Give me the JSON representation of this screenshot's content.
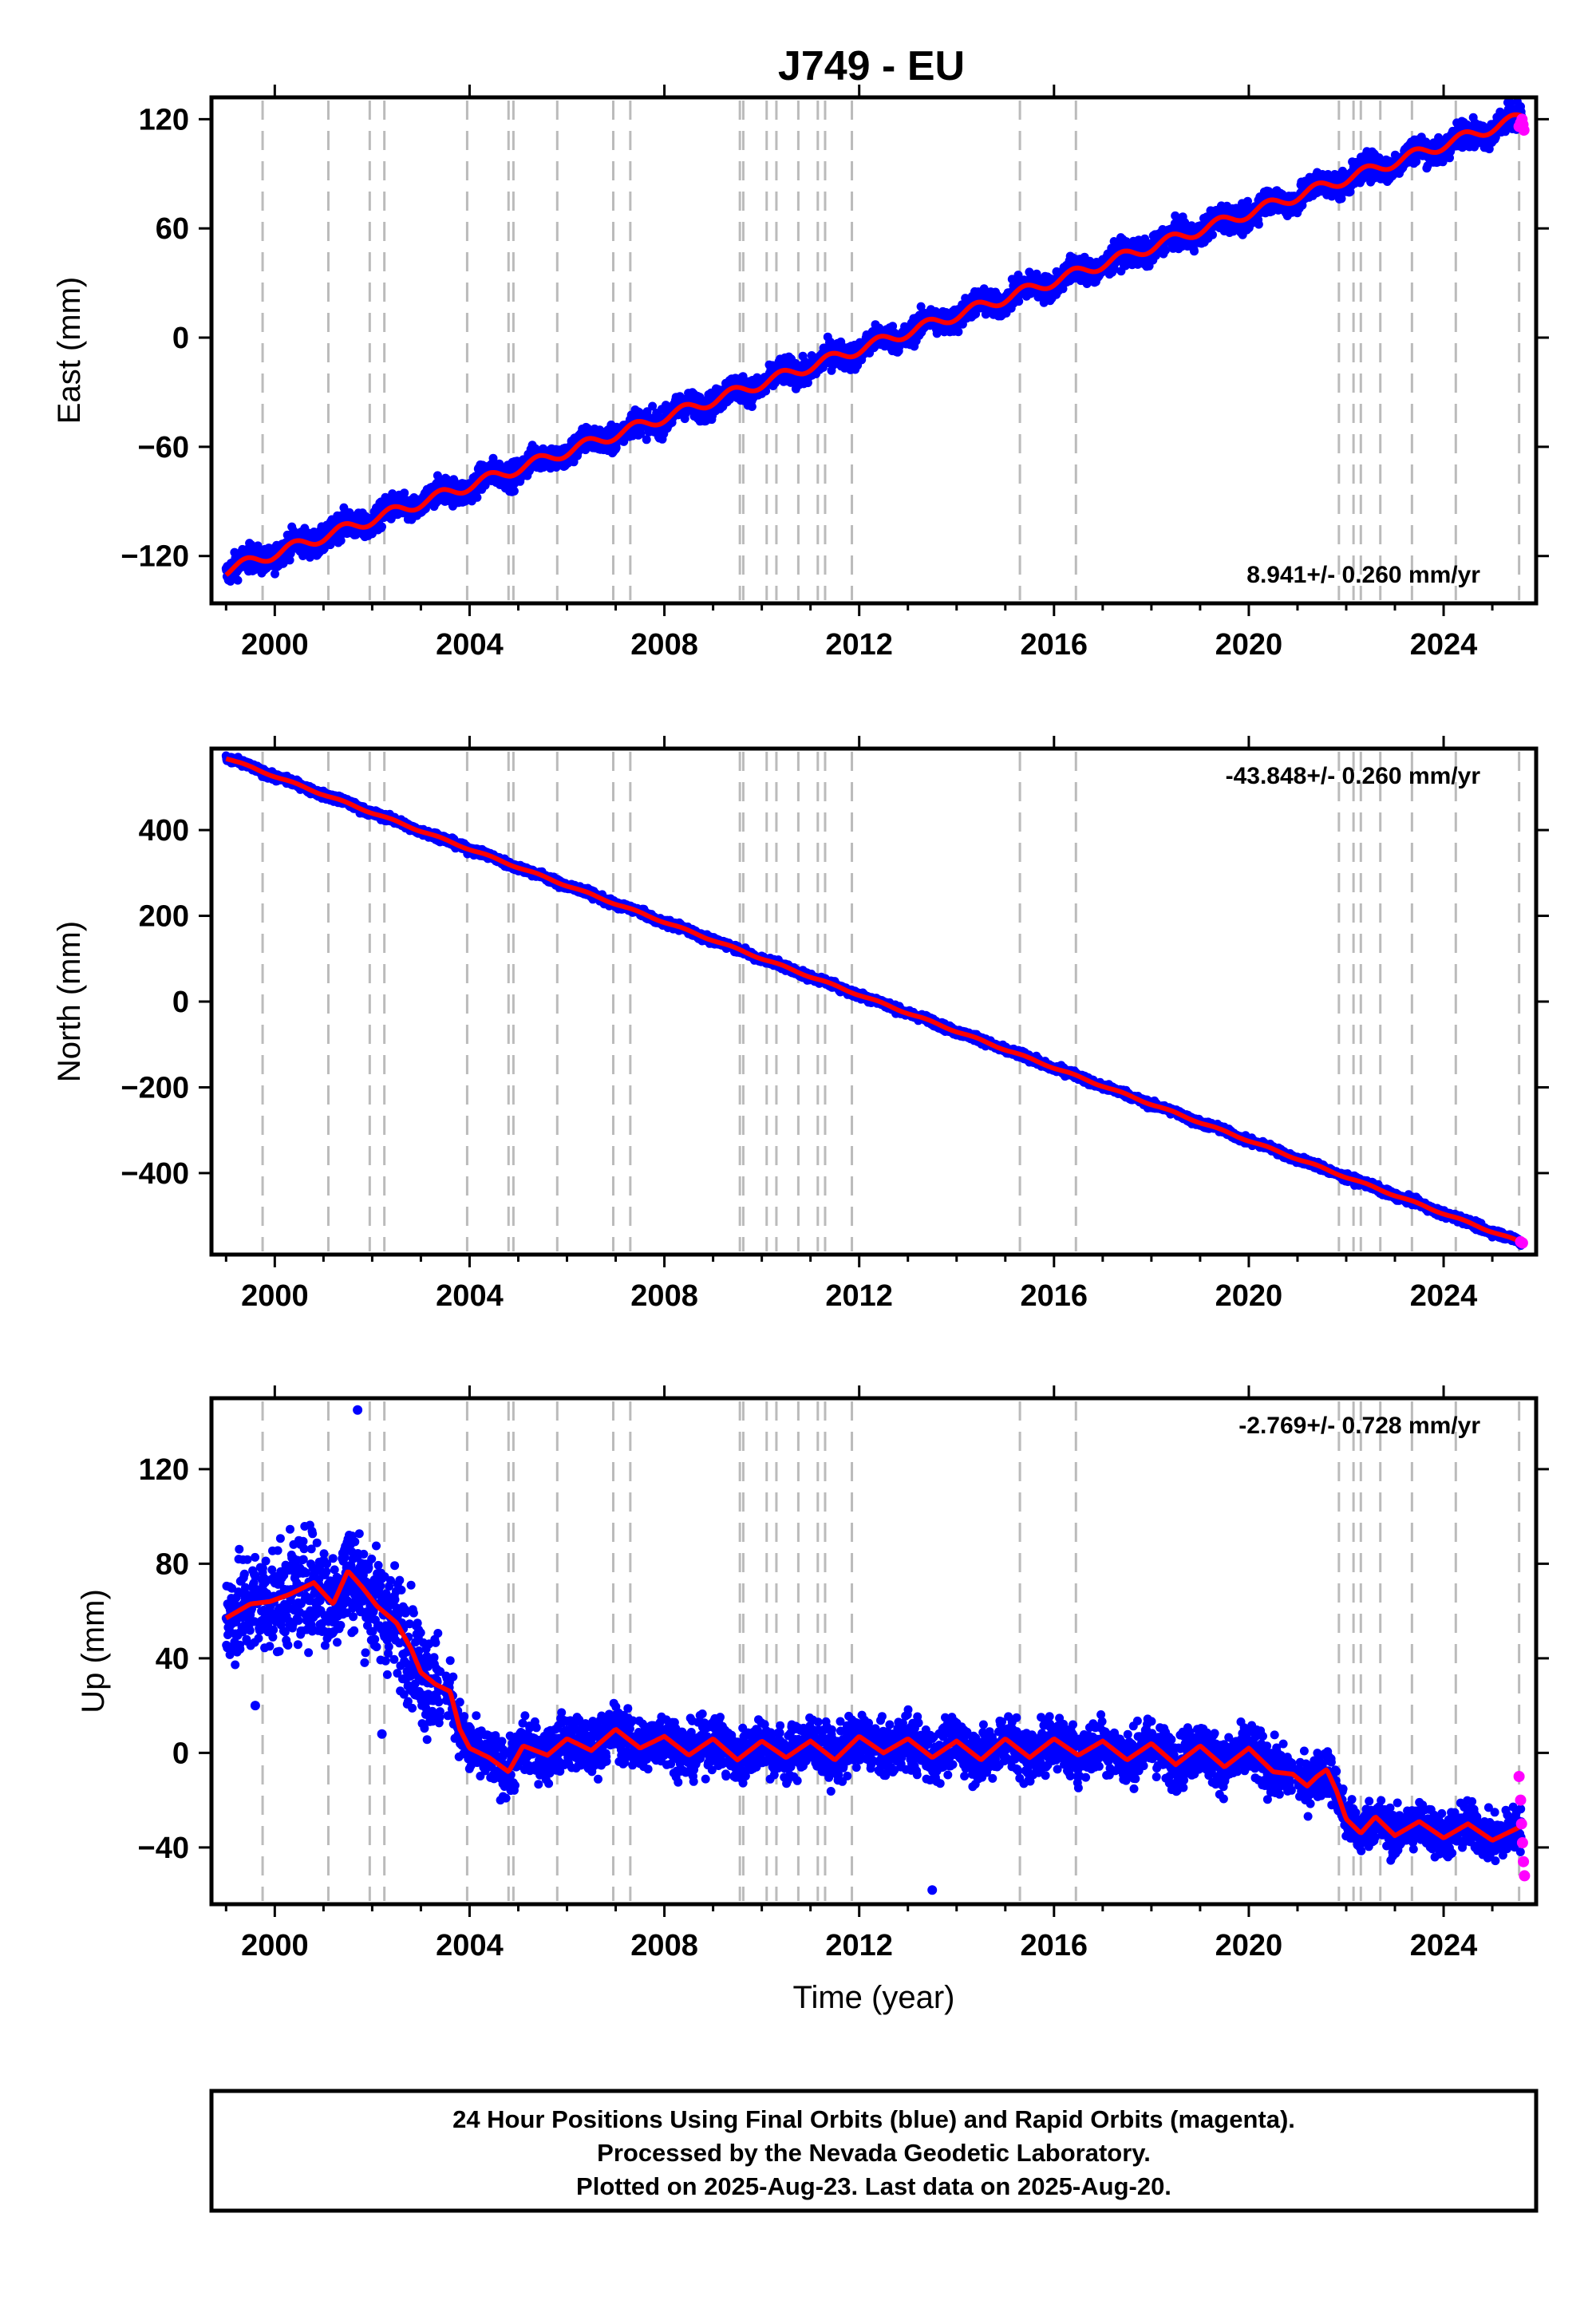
{
  "page": {
    "title": "J749 - EU",
    "footer": {
      "lines": [
        "24 Hour Positions Using Final Orbits (blue) and Rapid Orbits (magenta).",
        "Processed by the Nevada Geodetic Laboratory.",
        "Plotted on 2025-Aug-23. Last data on 2025-Aug-20."
      ]
    }
  },
  "colors": {
    "final_orbits": "#0000ff",
    "rapid_orbits": "#ff00ff",
    "model_fit": "#ff0000",
    "event_lines": "#bbbbbb"
  },
  "chart_data": [
    {
      "type": "scatter",
      "component": "East",
      "ylabel": "East (mm)",
      "xlabel": "",
      "xlim": [
        1998.7,
        2025.9
      ],
      "ylim": [
        -146,
        132
      ],
      "yticks": [
        -120,
        -60,
        0,
        60,
        120
      ],
      "xticks": [
        2000,
        2004,
        2008,
        2012,
        2016,
        2020,
        2024
      ],
      "grid": false,
      "rate_label": "8.941+/- 0.260 mm/yr",
      "rate_position": "bottom-right",
      "trend": {
        "start": [
          1999.0,
          -128
        ],
        "end": [
          2025.6,
          121
        ]
      },
      "seasonal_amplitude": 3,
      "scatter_spread": 5,
      "fit_steps": [
        [
          2001.5,
          4
        ],
        [
          2002.4,
          4
        ]
      ],
      "rapid_orbit_points": [
        [
          2025.55,
          116
        ],
        [
          2025.58,
          118
        ],
        [
          2025.61,
          120
        ],
        [
          2025.63,
          117
        ],
        [
          2025.65,
          114
        ]
      ]
    },
    {
      "type": "scatter",
      "component": "North",
      "ylabel": "North (mm)",
      "xlabel": "",
      "xlim": [
        1998.7,
        2025.9
      ],
      "ylim": [
        -590,
        590
      ],
      "yticks": [
        -400,
        -200,
        0,
        200,
        400
      ],
      "xticks": [
        2000,
        2004,
        2008,
        2012,
        2016,
        2020,
        2024
      ],
      "grid": false,
      "rate_label": "-43.848+/- 0.260 mm/yr",
      "rate_position": "top-right",
      "trend": {
        "start": [
          1999.0,
          568
        ],
        "end": [
          2025.6,
          -562
        ]
      },
      "seasonal_amplitude": 2,
      "scatter_spread": 6,
      "fit_steps": [],
      "rapid_orbit_points": [
        [
          2025.58,
          -560
        ],
        [
          2025.62,
          -563
        ]
      ]
    },
    {
      "type": "scatter",
      "component": "Up",
      "ylabel": "Up (mm)",
      "xlabel": "Time (year)",
      "xlim": [
        1998.7,
        2025.9
      ],
      "ylim": [
        -64,
        150
      ],
      "yticks": [
        -40,
        0,
        40,
        80,
        120
      ],
      "xticks": [
        2000,
        2004,
        2008,
        2012,
        2016,
        2020,
        2024
      ],
      "grid": false,
      "rate_label": "-2.769+/- 0.728 mm/yr",
      "rate_position": "top-right",
      "fit_curve": [
        [
          1999.0,
          57
        ],
        [
          1999.5,
          63
        ],
        [
          1999.9,
          64
        ],
        [
          2000.3,
          67
        ],
        [
          2000.8,
          72
        ],
        [
          2001.2,
          63
        ],
        [
          2001.5,
          77
        ],
        [
          2001.8,
          70
        ],
        [
          2002.1,
          62
        ],
        [
          2002.5,
          55
        ],
        [
          2002.8,
          44
        ],
        [
          2003.0,
          34
        ],
        [
          2003.3,
          29
        ],
        [
          2003.6,
          26
        ],
        [
          2003.8,
          10
        ],
        [
          2004.0,
          2
        ],
        [
          2004.4,
          -2
        ],
        [
          2004.8,
          -8
        ],
        [
          2005.1,
          3
        ],
        [
          2005.6,
          -1
        ],
        [
          2006.0,
          6
        ],
        [
          2006.5,
          1
        ],
        [
          2007.0,
          10
        ],
        [
          2007.5,
          2
        ],
        [
          2008.0,
          7
        ],
        [
          2008.5,
          -1
        ],
        [
          2009.0,
          6
        ],
        [
          2009.5,
          -3
        ],
        [
          2010.0,
          5
        ],
        [
          2010.5,
          -2
        ],
        [
          2011.0,
          5
        ],
        [
          2011.5,
          -3
        ],
        [
          2012.0,
          7
        ],
        [
          2012.5,
          0
        ],
        [
          2013.0,
          6
        ],
        [
          2013.5,
          -2
        ],
        [
          2014.0,
          5
        ],
        [
          2014.5,
          -3
        ],
        [
          2015.0,
          6
        ],
        [
          2015.5,
          -2
        ],
        [
          2016.0,
          6
        ],
        [
          2016.5,
          -1
        ],
        [
          2017.0,
          5
        ],
        [
          2017.5,
          -3
        ],
        [
          2018.0,
          4
        ],
        [
          2018.5,
          -5
        ],
        [
          2019.0,
          3
        ],
        [
          2019.5,
          -6
        ],
        [
          2020.0,
          2
        ],
        [
          2020.5,
          -8
        ],
        [
          2020.9,
          -9
        ],
        [
          2021.2,
          -14
        ],
        [
          2021.4,
          -10
        ],
        [
          2021.6,
          -7
        ],
        [
          2021.8,
          -16
        ],
        [
          2022.0,
          -28
        ],
        [
          2022.3,
          -34
        ],
        [
          2022.6,
          -27
        ],
        [
          2023.0,
          -35
        ],
        [
          2023.5,
          -29
        ],
        [
          2024.0,
          -36
        ],
        [
          2024.5,
          -30
        ],
        [
          2025.0,
          -37
        ],
        [
          2025.6,
          -31
        ]
      ],
      "scatter_segments": [
        {
          "x": [
            1999.0,
            2003.4
          ],
          "spread": 16
        },
        {
          "x": [
            2003.5,
            2020.9
          ],
          "spread": 8
        },
        {
          "x": [
            2021.0,
            2025.6
          ],
          "spread": 7
        }
      ],
      "outlier_points": [
        [
          2001.7,
          145
        ],
        [
          2013.5,
          -58
        ],
        [
          2002.2,
          8
        ],
        [
          1999.6,
          20
        ]
      ],
      "rapid_orbit_points": [
        [
          2025.55,
          -10
        ],
        [
          2025.58,
          -20
        ],
        [
          2025.6,
          -30
        ],
        [
          2025.62,
          -38
        ],
        [
          2025.64,
          -46
        ],
        [
          2025.66,
          -52
        ]
      ]
    }
  ],
  "event_lines_years": [
    1999.75,
    2001.1,
    2001.95,
    2002.25,
    2003.95,
    2004.8,
    2004.9,
    2005.8,
    2006.95,
    2007.3,
    2009.55,
    2009.62,
    2010.1,
    2010.3,
    2010.75,
    2011.15,
    2011.3,
    2011.85,
    2015.3,
    2016.45,
    2021.85,
    2022.15,
    2022.3,
    2022.7,
    2023.35,
    2024.25,
    2025.55
  ]
}
